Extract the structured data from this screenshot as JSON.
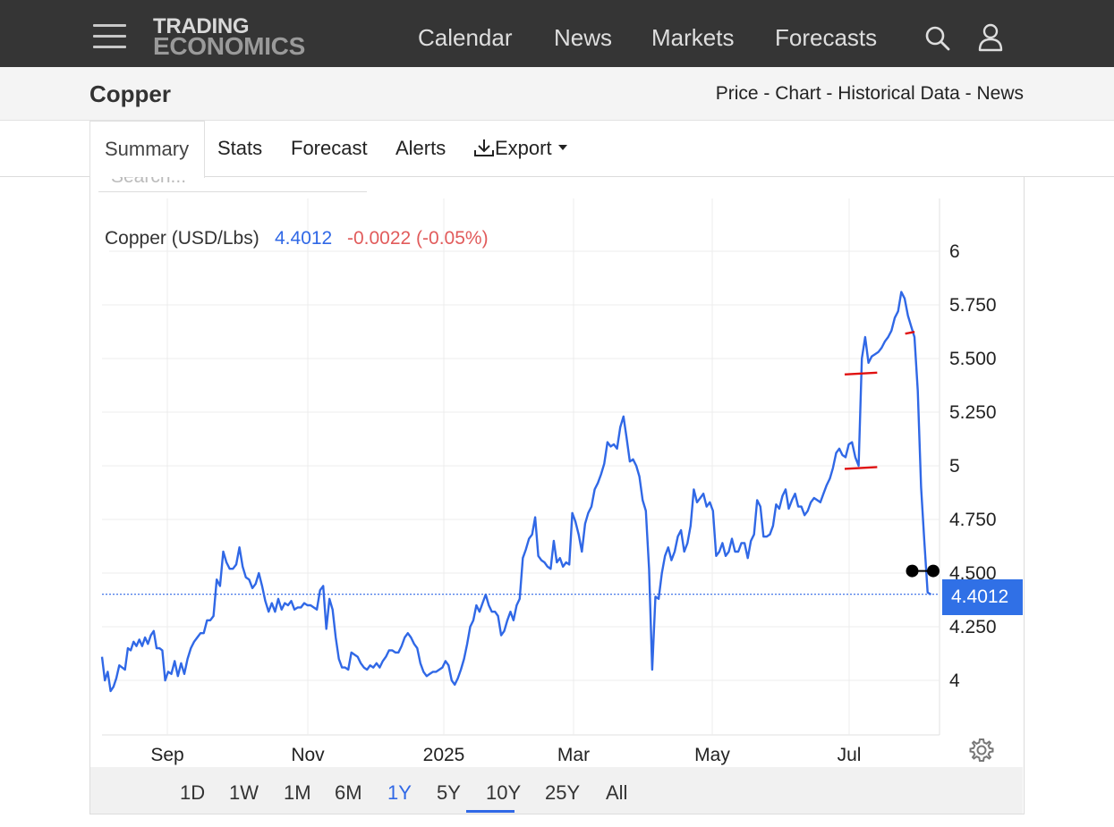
{
  "brand": {
    "line1": "TRADING",
    "line2": "ECONOMICS"
  },
  "nav": {
    "items": [
      "Calendar",
      "News",
      "Markets",
      "Forecasts"
    ]
  },
  "icons": {
    "menu": "hamburger-icon",
    "search": "search-icon",
    "user": "user-icon",
    "download": "download-icon",
    "caret": "caret-down-icon",
    "settings": "gear-icon"
  },
  "page": {
    "title": "Copper",
    "crumbs": [
      "Price",
      "Chart",
      "Historical Data",
      "News"
    ],
    "crumb_sep": " - "
  },
  "tabs": {
    "summary": "Summary",
    "stats": "Stats",
    "forecast": "Forecast",
    "alerts": "Alerts",
    "export": "Export"
  },
  "toolbar": {
    "search_placeholder": "Search..."
  },
  "legend": {
    "name": "Copper (USD/Lbs)",
    "value": "4.4012",
    "change": "-0.0022 (-0.05%)"
  },
  "price_tag": "4.4012",
  "ranges": {
    "items": [
      "1D",
      "1W",
      "1M",
      "6M",
      "1Y",
      "5Y",
      "10Y",
      "25Y",
      "All"
    ],
    "active": "1Y"
  },
  "colors": {
    "line": "#3068e6",
    "change_negative": "#e15b5b",
    "annotation": "#e01010",
    "header_bg": "#353535",
    "accent": "#3070e6"
  },
  "chart_data": {
    "type": "line",
    "series": [
      {
        "name": "Copper (USD/Lbs)",
        "x_start": "2024-07-31",
        "x_end": "2025-08-05",
        "values": [
          4.11,
          4.0,
          4.04,
          3.95,
          3.97,
          4.01,
          4.07,
          4.06,
          4.05,
          4.15,
          4.14,
          4.18,
          4.16,
          4.19,
          4.16,
          4.2,
          4.17,
          4.21,
          4.23,
          4.15,
          4.15,
          4.14,
          4.0,
          4.04,
          4.03,
          4.09,
          4.02,
          4.08,
          4.03,
          4.1,
          4.15,
          4.18,
          4.2,
          4.22,
          4.22,
          4.28,
          4.28,
          4.3,
          4.47,
          4.44,
          4.6,
          4.55,
          4.52,
          4.52,
          4.54,
          4.62,
          4.53,
          4.48,
          4.47,
          4.43,
          4.45,
          4.5,
          4.44,
          4.37,
          4.32,
          4.36,
          4.32,
          4.38,
          4.33,
          4.36,
          4.35,
          4.37,
          4.33,
          4.34,
          4.34,
          4.36,
          4.35,
          4.35,
          4.34,
          4.33,
          4.42,
          4.44,
          4.24,
          4.38,
          4.33,
          4.2,
          4.1,
          4.06,
          4.06,
          4.05,
          4.13,
          4.12,
          4.11,
          4.08,
          4.06,
          4.05,
          4.07,
          4.06,
          4.08,
          4.06,
          4.09,
          4.11,
          4.14,
          4.14,
          4.13,
          4.13,
          4.16,
          4.2,
          4.22,
          4.2,
          4.17,
          4.15,
          4.08,
          4.04,
          4.02,
          4.03,
          4.04,
          4.04,
          4.05,
          4.06,
          4.09,
          4.07,
          4.0,
          3.98,
          4.01,
          4.05,
          4.1,
          4.17,
          4.25,
          4.28,
          4.35,
          4.32,
          4.36,
          4.4,
          4.35,
          4.32,
          4.32,
          4.3,
          4.21,
          4.23,
          4.28,
          4.32,
          4.28,
          4.35,
          4.38,
          4.57,
          4.61,
          4.66,
          4.68,
          4.76,
          4.58,
          4.56,
          4.55,
          4.53,
          4.52,
          4.65,
          4.55,
          4.57,
          4.53,
          4.55,
          4.54,
          4.78,
          4.74,
          4.68,
          4.6,
          4.73,
          4.78,
          4.81,
          4.89,
          4.92,
          4.96,
          5.01,
          5.11,
          5.09,
          5.1,
          5.08,
          5.18,
          5.23,
          5.13,
          5.02,
          5.03,
          5.0,
          4.95,
          4.84,
          4.79,
          4.52,
          4.05,
          4.39,
          4.38,
          4.5,
          4.58,
          4.62,
          4.56,
          4.6,
          4.67,
          4.7,
          4.6,
          4.64,
          4.72,
          4.89,
          4.83,
          4.85,
          4.87,
          4.81,
          4.83,
          4.79,
          4.58,
          4.6,
          4.64,
          4.58,
          4.6,
          4.66,
          4.6,
          4.6,
          4.64,
          4.64,
          4.57,
          4.65,
          4.68,
          4.84,
          4.81,
          4.67,
          4.67,
          4.68,
          4.72,
          4.82,
          4.8,
          4.86,
          4.89,
          4.8,
          4.84,
          4.87,
          4.81,
          4.81,
          4.77,
          4.79,
          4.83,
          4.85,
          4.84,
          4.83,
          4.87,
          4.91,
          4.94,
          4.99,
          5.06,
          5.08,
          5.05,
          5.04,
          5.1,
          5.11,
          5.04,
          5.0,
          5.5,
          5.6,
          5.48,
          5.51,
          5.52,
          5.53,
          5.55,
          5.58,
          5.6,
          5.63,
          5.69,
          5.72,
          5.81,
          5.78,
          5.7,
          5.65,
          5.6,
          5.35,
          4.9,
          4.65,
          4.41,
          4.4
        ]
      }
    ],
    "x_ticks": [
      "Sep",
      "Nov",
      "2025",
      "Mar",
      "May",
      "Jul"
    ],
    "y_ticks": [
      "4",
      "4.250",
      "4.500",
      "4.750",
      "5",
      "5.250",
      "5.500",
      "5.750",
      "6"
    ],
    "ylim": [
      3.75,
      6.15
    ],
    "last_value": 4.4012,
    "grid": true,
    "y_axis_side": "right",
    "annotations": [
      {
        "kind": "horizontal-segment",
        "from": "2025-06-29",
        "to": "2025-07-13",
        "y": 4.99,
        "color": "#e01010"
      },
      {
        "kind": "horizontal-segment",
        "from": "2025-06-29",
        "to": "2025-07-13",
        "y": 5.43,
        "color": "#e01010"
      },
      {
        "kind": "horizontal-segment",
        "from": "2025-07-25",
        "to": "2025-07-29",
        "y": 5.62,
        "color": "#e01010"
      },
      {
        "kind": "dot-pair",
        "from": "2025-07-28",
        "to": "2025-08-06",
        "y": 4.51,
        "color": "#000000"
      }
    ],
    "title": "",
    "xlabel": "",
    "ylabel": ""
  }
}
